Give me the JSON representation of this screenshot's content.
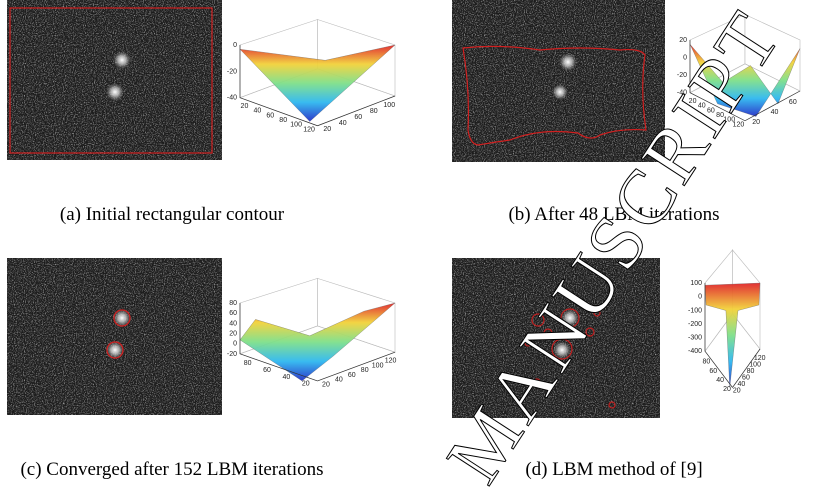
{
  "panels": [
    {
      "caption": "(a) Initial rectangular contour",
      "plot": {
        "z_ticks": [
          "0",
          "-20",
          "-40"
        ],
        "x_ticks": [
          "20",
          "40",
          "60",
          "80",
          "100",
          "120"
        ],
        "y_ticks": [
          "20",
          "40",
          "60",
          "80",
          "100"
        ]
      }
    },
    {
      "caption": "(b) After 48 LBM iterations",
      "plot": {
        "z_ticks": [
          "20",
          "0",
          "-20",
          "-40"
        ],
        "x_ticks": [
          "20",
          "40",
          "60",
          "80",
          "100",
          "120"
        ],
        "y_ticks": [
          "20",
          "40",
          "60"
        ]
      }
    },
    {
      "caption": "(c) Converged after 152 LBM iterations",
      "plot": {
        "z_ticks": [
          "80",
          "60",
          "40",
          "20",
          "0",
          "-20"
        ],
        "x_ticks": [
          "80",
          "60",
          "40",
          "20"
        ],
        "y_ticks": [
          "20",
          "40",
          "60",
          "80",
          "100",
          "120"
        ]
      }
    },
    {
      "caption": "(d) LBM method of [9]",
      "plot": {
        "z_ticks": [
          "100",
          "0",
          "-100",
          "-200",
          "-300",
          "-400"
        ],
        "x_ticks": [
          "80",
          "60",
          "40",
          "20"
        ],
        "y_ticks": [
          "20",
          "40",
          "60",
          "80",
          "100",
          "120"
        ]
      }
    }
  ],
  "watermark": "MANUSCRIPT"
}
